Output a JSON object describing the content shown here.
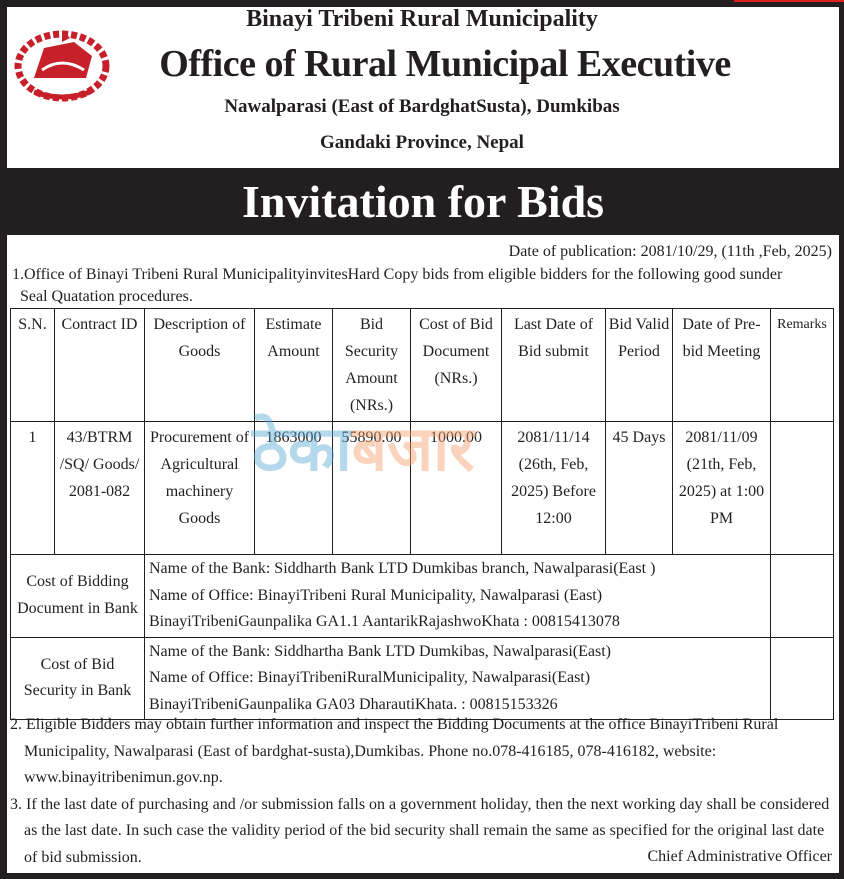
{
  "header": {
    "municipality": "Binayi Tribeni Rural Municipality",
    "office": "Office of Rural Municipal Executive",
    "address": "Nawalparasi (East of BardghatSusta), Dumkibas",
    "province": "Gandaki Province, Nepal",
    "emblem_color": "#c8202a"
  },
  "title": "Invitation for Bids",
  "publication_date": "Date of publication: 2081/10/29, (11th ,Feb, 2025)",
  "intro_line1": "1.Office of Binayi Tribeni Rural MunicipalityinvitesHard Copy bids from eligible bidders for the following good sunder",
  "intro_line2": "Seal Quatation procedures.",
  "table": {
    "headers": [
      "S.N.",
      "Contract ID",
      "Description of Goods",
      "Estimate Amount",
      "Bid Security Amount (NRs.)",
      "Cost of Bid Document (NRs.)",
      "Last Date of Bid submit",
      "Bid Valid Period",
      "Date of Pre-bid Meeting",
      "Remarks"
    ],
    "rows": [
      [
        "1",
        "43/BTRM /SQ/ Goods/ 2081-082",
        "Procurement of Agricultural machinery Goods",
        "1863000",
        "55890.00",
        "1000.00",
        "2081/11/14 (26th, Feb, 2025) Before 12:00",
        "45 Days",
        "2081/11/09 (21th, Feb, 2025) at 1:00 PM",
        ""
      ]
    ],
    "bank_rows": [
      {
        "label": "Cost of  Bidding Document in Bank",
        "lines": [
          "Name of the Bank: Siddharth Bank LTD Dumkibas branch, Nawalparasi(East )",
          "Name of Office: BinayiTribeni Rural Municipality, Nawalparasi (East)",
          "BinayiTribeniGaunpalika GA1.1 AantarikRajashwoKhata : 00815413078"
        ]
      },
      {
        "label": "Cost of  Bid Security in Bank",
        "lines": [
          "Name of the Bank: Siddhartha Bank LTD Dumkibas, Nawalparasi(East)",
          "Name of Office: BinayiTribeniRuralMunicipality, Nawalparasi(East)",
          "BinayiTribeniGaunpalika GA03 DharautiKhata. : 00815153326"
        ]
      }
    ]
  },
  "watermark": {
    "part1": "ठेका",
    "part2": "बजार"
  },
  "notes": [
    "2. Eligible Bidders may obtain further information and inspect the Bidding Documents at the office BinayiTribeni Rural Municipality, Nawalparasi (East of bardghat-susta),Dumkibas. Phone no.078-416185, 078-416182, website: www.binayitribenimun.gov.np.",
    "3. If the last date of purchasing and /or submission falls on a government holiday, then the next working day shall be considered as the last date. In such case the validity period of the bid security shall remain the same as specified for the original last date of bid submission."
  ],
  "signatory": "Chief Administrative Officer"
}
